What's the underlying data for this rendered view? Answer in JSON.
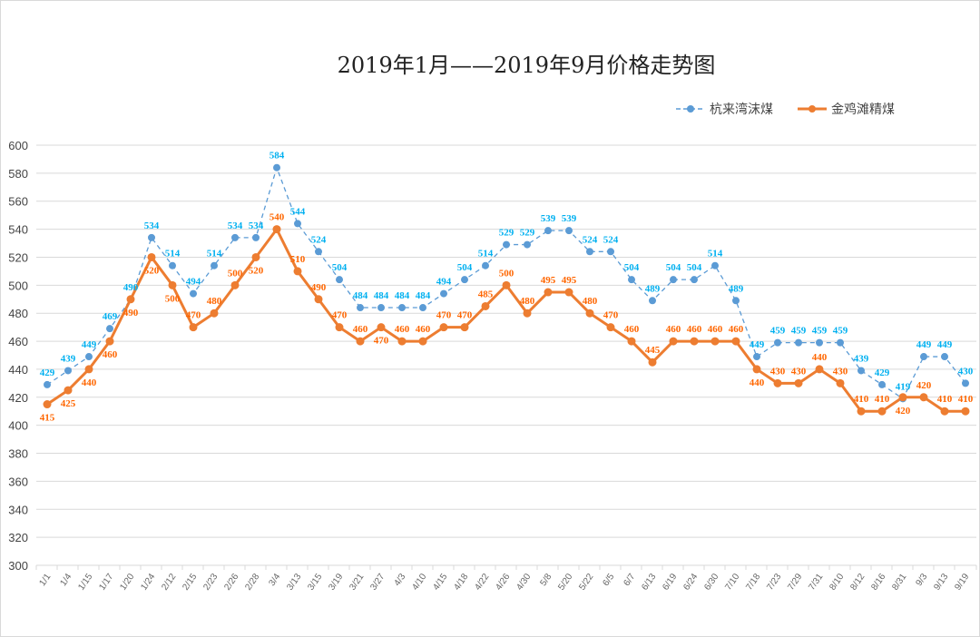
{
  "chart_data": {
    "type": "line",
    "title": "2019年1月——2019年9月价格走势图",
    "xlabel": "",
    "ylabel": "",
    "ylim": [
      300,
      600
    ],
    "yticks": [
      300,
      320,
      340,
      360,
      380,
      400,
      420,
      440,
      460,
      480,
      500,
      520,
      540,
      560,
      580,
      600
    ],
    "grid": true,
    "legend_position": "top-right",
    "categories": [
      "1/1",
      "1/4",
      "1/15",
      "1/17",
      "1/20",
      "1/24",
      "2/12",
      "2/15",
      "2/23",
      "2/26",
      "2/28",
      "3/4",
      "3/13",
      "3/15",
      "3/19",
      "3/21",
      "3/27",
      "4/3",
      "4/10",
      "4/15",
      "4/18",
      "4/22",
      "4/26",
      "4/30",
      "5/8",
      "5/20",
      "5/22",
      "6/5",
      "6/7",
      "6/13",
      "6/19",
      "6/24",
      "6/30",
      "7/10",
      "7/18",
      "7/23",
      "7/29",
      "7/31",
      "8/10",
      "8/12",
      "8/16",
      "8/31",
      "9/3",
      "9/13",
      "9/19"
    ],
    "series": [
      {
        "name": "杭来湾沫煤",
        "color": "#5b9bd5",
        "label_color": "#00b0f0",
        "style": "dashed-marker",
        "values": [
          429,
          439,
          449,
          469,
          490,
          534,
          514,
          494,
          514,
          534,
          534,
          584,
          544,
          524,
          504,
          484,
          484,
          484,
          484,
          494,
          504,
          514,
          529,
          529,
          539,
          539,
          524,
          524,
          504,
          489,
          504,
          504,
          514,
          489,
          449,
          459,
          459,
          459,
          459,
          439,
          429,
          419,
          449,
          449,
          430
        ]
      },
      {
        "name": "金鸡滩精煤",
        "color": "#ed7d31",
        "label_color": "#ff6600",
        "style": "solid-marker",
        "values": [
          415,
          425,
          440,
          460,
          490,
          520,
          500,
          470,
          480,
          500,
          520,
          540,
          510,
          490,
          470,
          460,
          470,
          460,
          460,
          470,
          470,
          485,
          500,
          480,
          495,
          495,
          480,
          470,
          460,
          445,
          460,
          460,
          460,
          460,
          440,
          430,
          430,
          440,
          430,
          410,
          410,
          420,
          420,
          410,
          410
        ]
      }
    ]
  }
}
